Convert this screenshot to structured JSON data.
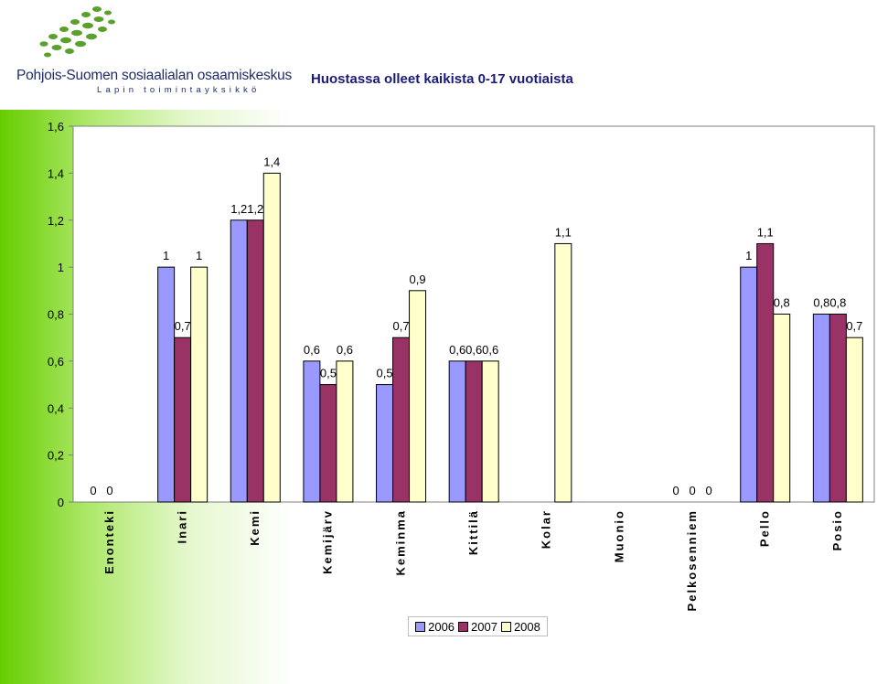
{
  "logo": {
    "name": "Pohjois-Suomen sosiaalialan osaamiskeskus",
    "subtitle": "Lapin toimintayksikkö"
  },
  "colors": {
    "series_2006": "#9999ff",
    "series_2007": "#993366",
    "series_2008": "#ffffcc",
    "plot_background": "#ffffff",
    "green_panel": "#66cc00"
  },
  "chart_data": {
    "type": "bar",
    "title": "Huostassa olleet kaikista 0-17 vuotiaista",
    "xlabel": "",
    "ylabel": "",
    "ylim": [
      0,
      1.6
    ],
    "yticks": [
      "0",
      "0,2",
      "0,4",
      "0,6",
      "0,8",
      "1",
      "1,2",
      "1,4",
      "1,6"
    ],
    "grid": false,
    "legend_position": "bottom",
    "categories": [
      "Enonteki",
      "Inari",
      "Kemi",
      "Kemijärv",
      "Keminma",
      "Kittilä",
      "Kolar",
      "Muonio",
      "Pelkosenniem",
      "Pello",
      "Posio"
    ],
    "series": [
      {
        "name": "2006",
        "values": [
          0,
          1,
          1.2,
          0.6,
          0.5,
          0.6,
          null,
          null,
          0,
          1,
          0.8
        ],
        "labels": [
          "0",
          "1",
          "1,2",
          "0,6",
          "0,5",
          "0,6",
          "",
          "",
          "0",
          "1",
          "0,8"
        ]
      },
      {
        "name": "2007",
        "values": [
          0,
          0.7,
          1.2,
          0.5,
          0.7,
          0.6,
          null,
          null,
          0,
          1.1,
          0.8
        ],
        "labels": [
          "0",
          "0,7",
          "1,2",
          "0,5",
          "0,7",
          "0,6",
          "",
          "",
          "0",
          "1,1",
          "0,8"
        ]
      },
      {
        "name": "2008",
        "values": [
          null,
          1,
          1.4,
          0.6,
          0.9,
          0.6,
          1.1,
          null,
          0,
          0.8,
          0.7
        ],
        "labels": [
          "",
          "1",
          "1,4",
          "0,6",
          "0,9",
          "0,6",
          "1,1",
          "",
          "0",
          "0,8",
          "0,7"
        ]
      }
    ]
  }
}
